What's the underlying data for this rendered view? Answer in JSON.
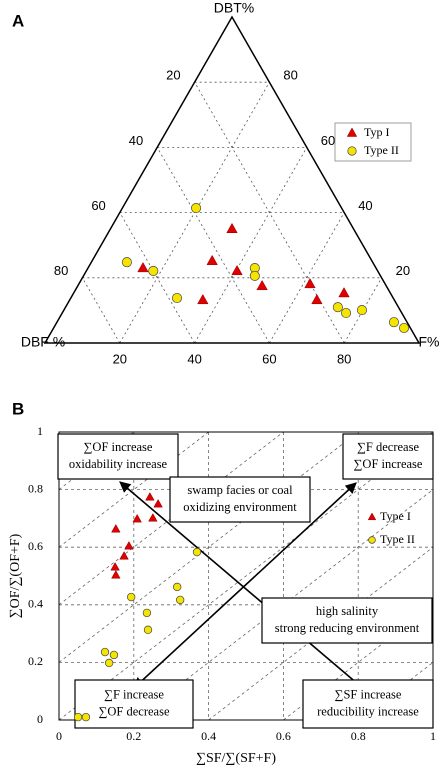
{
  "chart_data": [
    {
      "type": "ternary",
      "panel_label": "A",
      "axis_labels": {
        "top": "DBT%",
        "left": "DBF %",
        "right": "F%"
      },
      "ticks": [
        20,
        40,
        60,
        80
      ],
      "grid": true,
      "series": [
        {
          "name": "Typ I",
          "marker": "triangle",
          "color": "#e00000",
          "dbt": [
            35.0,
            25.2,
            23.0,
            22.1,
            13.2,
            17.5,
            18.1,
            13.2,
            15.3
          ],
          "dbf": [
            32.5,
            42.7,
            62.3,
            37.6,
            51.2,
            33.2,
            20.1,
            20.7,
            12.4
          ],
          "f": [
            32.5,
            32.1,
            14.7,
            40.3,
            35.6,
            49.3,
            61.8,
            66.1,
            72.3
          ]
        },
        {
          "name": "Type II",
          "marker": "circle",
          "color": "#f5e400",
          "dbt": [
            41.4,
            24.8,
            22.1,
            13.8,
            23.0,
            20.6,
            11.0,
            9.2,
            10.1,
            6.4,
            4.6
          ],
          "dbf": [
            38.9,
            65.7,
            60.0,
            57.8,
            32.4,
            33.6,
            16.2,
            14.9,
            10.2,
            3.5,
            1.7
          ],
          "f": [
            19.7,
            9.5,
            17.9,
            28.4,
            44.6,
            45.8,
            72.8,
            75.9,
            79.7,
            90.1,
            93.7
          ]
        }
      ]
    },
    {
      "type": "scatter",
      "panel_label": "B",
      "x_label": "∑SF/∑(SF+F)",
      "y_label": "∑OF/∑(OF+F)",
      "xlim": [
        0,
        1
      ],
      "ylim": [
        0,
        1
      ],
      "xticks": [
        0,
        0.2,
        0.4,
        0.6,
        0.8,
        1
      ],
      "yticks": [
        0,
        0.2,
        0.4,
        0.6,
        0.8,
        1
      ],
      "grid": true,
      "series": [
        {
          "name": "Type I",
          "marker": "triangle",
          "color": "#e00000",
          "x": [
            0.243,
            0.265,
            0.251,
            0.152,
            0.209,
            0.187,
            0.174,
            0.15,
            0.152
          ],
          "y": [
            0.774,
            0.75,
            0.701,
            0.663,
            0.698,
            0.604,
            0.569,
            0.531,
            0.503
          ]
        },
        {
          "name": "Type II",
          "marker": "circle",
          "color": "#f5e400",
          "x": [
            0.369,
            0.316,
            0.324,
            0.235,
            0.238,
            0.193,
            0.123,
            0.147,
            0.134,
            0.051,
            0.072
          ],
          "y": [
            0.583,
            0.462,
            0.417,
            0.372,
            0.313,
            0.427,
            0.236,
            0.226,
            0.198,
            0.01,
            0.01
          ]
        }
      ],
      "annotations": [
        [
          "∑OF increase",
          "oxidability increase"
        ],
        [
          "swamp facies or coal",
          "oxidizing environment"
        ],
        [
          "∑F decrease",
          "∑OF increase"
        ],
        [
          "high salinity",
          "strong reducing environment"
        ],
        [
          "∑F increase",
          "∑OF decrease"
        ],
        [
          "∑SF increase",
          "reducibility increase"
        ]
      ]
    }
  ]
}
